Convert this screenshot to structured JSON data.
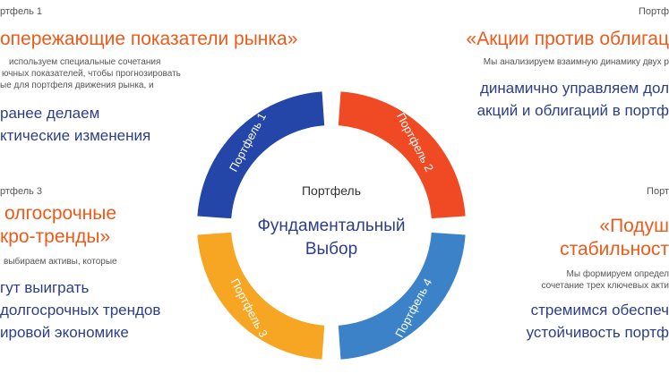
{
  "colors": {
    "accent_orange": "#ee5a1a",
    "navy_text": "#2c3f86",
    "seg_blue": "#2346a8",
    "seg_red": "#ef4a23",
    "seg_yellow": "#f6a623",
    "seg_light_blue": "#3b82c8"
  },
  "top_left": {
    "label": "ртфель 1",
    "heading": "опережающие показатели рынка»",
    "body": [
      "используем специальные сочетания",
      "ючных показателей, чтобы прогнозировать",
      "ые для портфеля движения рынка, и"
    ],
    "highlight": [
      "ранее делаем",
      "ктические изменения"
    ]
  },
  "bottom_left": {
    "label": "ртфель 3",
    "heading": [
      "олгосрочные",
      "кро-тренды»"
    ],
    "body": [
      "выбираем активы, которые"
    ],
    "highlight": [
      "гут выиграть",
      "долгосрочных трендов",
      "ировой экономике"
    ]
  },
  "top_right": {
    "label": "Портф",
    "heading": "«Акции против облигац",
    "body": [
      "Мы анализируем взаимную динамику двух р"
    ],
    "highlight": [
      "динамично управляем дол",
      "акций и облигаций в портф"
    ]
  },
  "bottom_right": {
    "label": "Порт",
    "heading": [
      "«Подуш",
      "стабильност"
    ],
    "body": [
      "Мы формируем определ",
      "сочетание трех ключевых акти"
    ],
    "highlight": [
      "стремимся обеспеч",
      "устойчивость портф"
    ]
  },
  "diagram": {
    "center_label": "Портфель",
    "center_title": [
      "Фундаментальный",
      "Выбор"
    ],
    "segments": [
      {
        "label": "Портфель 1",
        "color": "#2346a8"
      },
      {
        "label": "Портфель 2",
        "color": "#ef4a23"
      },
      {
        "label": "Портфель 3",
        "color": "#f6a623"
      },
      {
        "label": "Портфель 4",
        "color": "#3b82c8"
      }
    ]
  }
}
